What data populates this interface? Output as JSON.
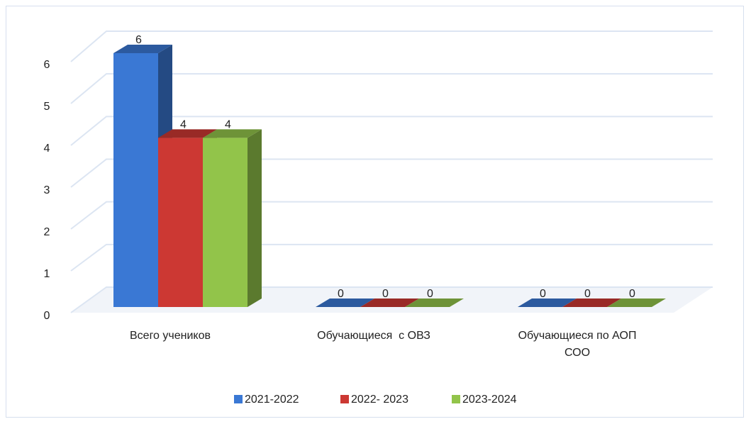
{
  "chart_data": {
    "type": "bar3d",
    "categories": [
      "Всего учеников",
      "Обучающиеся  с ОВЗ",
      "Обучающиеся по АОП СОО"
    ],
    "series": [
      {
        "name": "2021-2022",
        "color": "#3a78d4",
        "values": [
          6,
          0,
          0
        ]
      },
      {
        "name": "2022- 2023",
        "color": "#cc3833",
        "values": [
          4,
          0,
          0
        ]
      },
      {
        "name": "2023-2024",
        "color": "#92c44a",
        "values": [
          4,
          0,
          0
        ]
      }
    ],
    "ylim": [
      0,
      6
    ],
    "yticks": [
      0,
      1,
      2,
      3,
      4,
      5,
      6
    ],
    "grid": true,
    "legend": "bottom"
  }
}
